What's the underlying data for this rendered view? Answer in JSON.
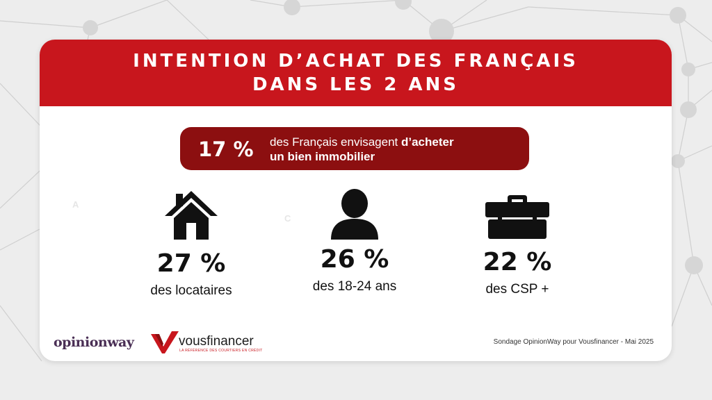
{
  "header": {
    "line1": "INTENTION D’ACHAT DES FRANÇAIS",
    "line2": "DANS LES 2 ANS"
  },
  "banner": {
    "percent": "17 %",
    "text_regular": "des Français envisagent ",
    "text_bold_1": "d’acheter",
    "text_bold_2": "un bien immobilier"
  },
  "stats": [
    {
      "icon": "house-icon",
      "value": "27 %",
      "label": "des locataires"
    },
    {
      "icon": "person-icon",
      "value": "26 %",
      "label": "des 18-24 ans"
    },
    {
      "icon": "briefcase-icon",
      "value": "22 %",
      "label": "des CSP +"
    }
  ],
  "faint_letters": [
    "A",
    "C"
  ],
  "footer": {
    "logo_opinionway": "opinionway",
    "logo_vousfinancer": "vousfinancer",
    "logo_vousfinancer_tagline": "LA RÉFÉRENCE DES COURTIERS EN CRÉDIT",
    "source": "Sondage OpinionWay pour Vousfinancer - Mai 2025"
  },
  "colors": {
    "header_red": "#c8161d",
    "banner_dark_red": "#8c0f10",
    "background": "#ededed"
  }
}
